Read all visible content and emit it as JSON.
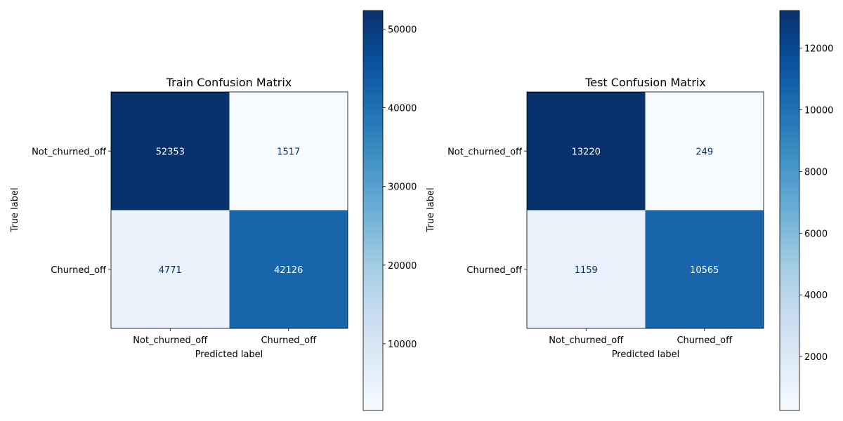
{
  "chart_data": [
    {
      "type": "heatmap",
      "title": "Train Confusion Matrix",
      "xlabel": "Predicted label",
      "ylabel": "True label",
      "x_categories": [
        "Not_churned_off",
        "Churned_off"
      ],
      "y_categories": [
        "Not_churned_off",
        "Churned_off"
      ],
      "values": [
        [
          52353,
          1517
        ],
        [
          4771,
          42126
        ]
      ],
      "colormap": "Blues",
      "colorbar": {
        "ticks": [
          10000,
          20000,
          30000,
          40000,
          50000
        ],
        "range": [
          1517,
          52353
        ]
      }
    },
    {
      "type": "heatmap",
      "title": "Test Confusion Matrix",
      "xlabel": "Predicted label",
      "ylabel": "True label",
      "x_categories": [
        "Not_churned_off",
        "Churned_off"
      ],
      "y_categories": [
        "Not_churned_off",
        "Churned_off"
      ],
      "values": [
        [
          13220,
          249
        ],
        [
          1159,
          10565
        ]
      ],
      "colormap": "Blues",
      "colorbar": {
        "ticks": [
          2000,
          4000,
          6000,
          8000,
          10000,
          12000
        ],
        "range": [
          249,
          13220
        ]
      }
    }
  ]
}
